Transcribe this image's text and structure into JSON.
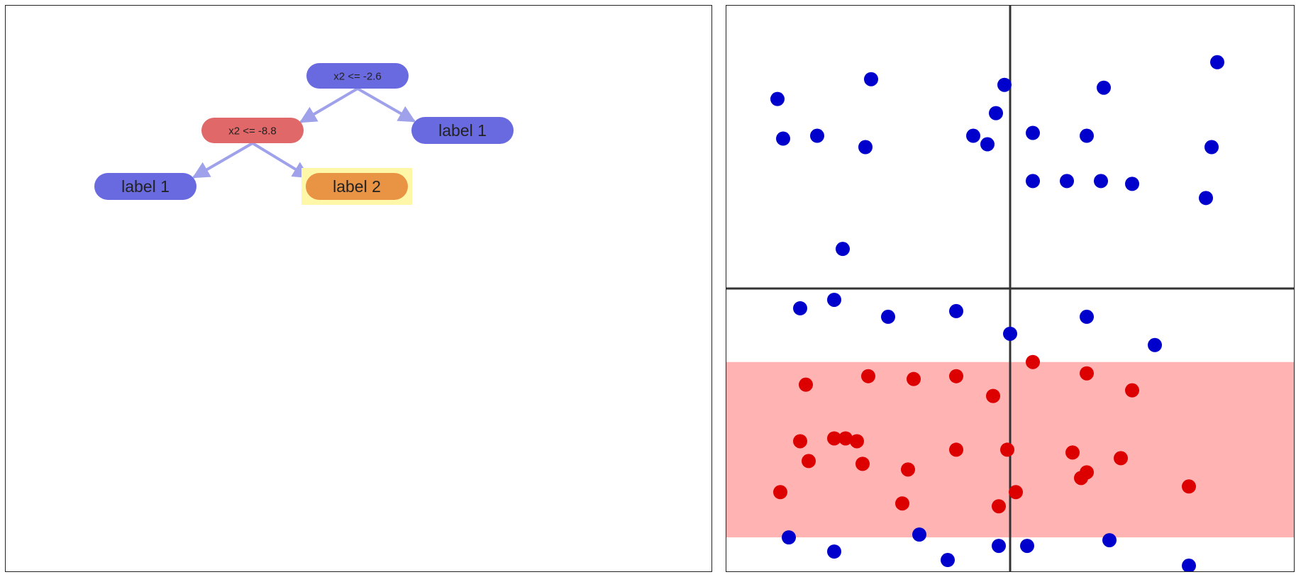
{
  "tree": {
    "colors": {
      "split_blue": "#6a6ae0",
      "split_red": "#e06868",
      "leaf_blue": "#6a6ae0",
      "leaf_orange": "#e89444",
      "highlight": "#fff7a8",
      "edge": "#9fa2ea"
    },
    "nodes": [
      {
        "id": "root",
        "label": "x2 <= -2.6",
        "type": "split",
        "color": "split_blue"
      },
      {
        "id": "split2",
        "label": "x2 <= -8.8",
        "type": "split",
        "color": "split_red"
      },
      {
        "id": "leaf_right",
        "label": "label 1",
        "type": "leaf",
        "color": "leaf_blue"
      },
      {
        "id": "leaf_ll",
        "label": "label 1",
        "type": "leaf",
        "color": "leaf_blue"
      },
      {
        "id": "leaf_lr",
        "label": "label 2",
        "type": "leaf",
        "color": "leaf_orange",
        "highlighted": true
      }
    ],
    "edges": [
      {
        "from": "root",
        "to": "split2"
      },
      {
        "from": "root",
        "to": "leaf_right"
      },
      {
        "from": "split2",
        "to": "leaf_ll"
      },
      {
        "from": "split2",
        "to": "leaf_lr"
      }
    ]
  },
  "chart_data": {
    "type": "scatter",
    "title": "",
    "xlabel": "",
    "ylabel": "",
    "xlim": [
      0,
      100
    ],
    "ylim": [
      0,
      100
    ],
    "grid": false,
    "colors": {
      "label_1": "#0000cc",
      "label_2": "#dd0000",
      "region": "#ffb3b3",
      "split_line": "#333333"
    },
    "split_lines": [
      {
        "orientation": "vertical",
        "x": 50
      },
      {
        "orientation": "horizontal",
        "y": 50
      }
    ],
    "region": {
      "label": "label 2",
      "x_range": [
        0,
        100
      ],
      "y_range": [
        6,
        37
      ]
    },
    "series": [
      {
        "class": "label_1",
        "points": [
          [
            9,
            83.5
          ],
          [
            25.5,
            87
          ],
          [
            49,
            86
          ],
          [
            66.5,
            85.5
          ],
          [
            86.5,
            90
          ],
          [
            47.5,
            81
          ],
          [
            10,
            76.5
          ],
          [
            16,
            77
          ],
          [
            24.5,
            75
          ],
          [
            43.5,
            77
          ],
          [
            46,
            75.5
          ],
          [
            54,
            77.5
          ],
          [
            63.5,
            77
          ],
          [
            85.5,
            75
          ],
          [
            54,
            69
          ],
          [
            60,
            69
          ],
          [
            66,
            69
          ],
          [
            71.5,
            68.5
          ],
          [
            84.5,
            66
          ],
          [
            20.5,
            57
          ],
          [
            13,
            46.5
          ],
          [
            19,
            48
          ],
          [
            28.5,
            45
          ],
          [
            40.5,
            46
          ],
          [
            63.5,
            45
          ],
          [
            50,
            42
          ],
          [
            75.5,
            40
          ],
          [
            11,
            6
          ],
          [
            19,
            3.5
          ],
          [
            34,
            6.5
          ],
          [
            39,
            2
          ],
          [
            48,
            4.5
          ],
          [
            53,
            4.5
          ],
          [
            67.5,
            5.5
          ],
          [
            81.5,
            1
          ]
        ]
      },
      {
        "class": "label_2",
        "points": [
          [
            54,
            37
          ],
          [
            14,
            33
          ],
          [
            25,
            34.5
          ],
          [
            33,
            34
          ],
          [
            40.5,
            34.5
          ],
          [
            63.5,
            35
          ],
          [
            71.5,
            32
          ],
          [
            47,
            31
          ],
          [
            13,
            23
          ],
          [
            19,
            23.5
          ],
          [
            21,
            23.5
          ],
          [
            23,
            23
          ],
          [
            40.5,
            21.5
          ],
          [
            49.5,
            21.5
          ],
          [
            61,
            21
          ],
          [
            69.5,
            20
          ],
          [
            14.5,
            19.5
          ],
          [
            24,
            19
          ],
          [
            32,
            18
          ],
          [
            63.5,
            17.5
          ],
          [
            62.5,
            16.5
          ],
          [
            9.5,
            14
          ],
          [
            51,
            14
          ],
          [
            31,
            12
          ],
          [
            48,
            11.5
          ],
          [
            81.5,
            15
          ]
        ]
      }
    ]
  }
}
